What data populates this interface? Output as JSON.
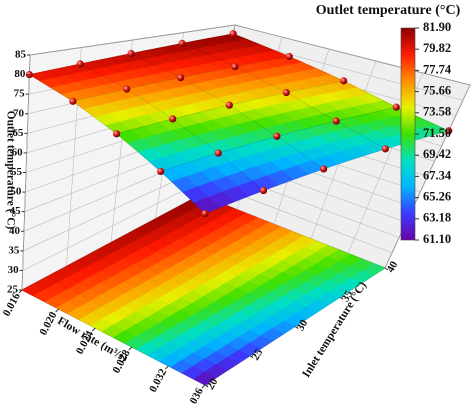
{
  "chart_data": {
    "type": "surface3d",
    "zlabel": "Outlet temperature (°C)",
    "xlabel": "Flow rate (m³/s)",
    "ylabel": "Inlet temperature (°C)",
    "xlim": [
      0.016,
      0.036
    ],
    "xticks": [
      0.016,
      {
        "value": 0.02,
        "label": "0.020"
      },
      0.024,
      0.028,
      0.032,
      0.036
    ],
    "ylim": [
      20,
      40
    ],
    "yticks": [
      20,
      25,
      30,
      35,
      40
    ],
    "zlim": [
      25,
      85
    ],
    "zticks": [
      25,
      30,
      35,
      40,
      45,
      50,
      55,
      60,
      65,
      70,
      75,
      80,
      85
    ],
    "surface": {
      "x": [
        0.016,
        0.021,
        0.026,
        0.031,
        0.036
      ],
      "y": [
        20,
        25,
        30,
        35,
        40
      ],
      "z": [
        [
          80.0,
          80.5,
          81.0,
          81.5,
          81.9
        ],
        [
          76.5,
          77.3,
          78.0,
          78.7,
          79.3
        ],
        [
          72.0,
          73.2,
          74.3,
          75.3,
          76.2
        ],
        [
          66.8,
          68.4,
          69.9,
          71.3,
          72.6
        ],
        [
          61.1,
          63.2,
          65.4,
          67.7,
          70.0
        ]
      ]
    },
    "colorbar": {
      "title": "Outlet temperature (°C)",
      "clim": [
        61.1,
        81.9
      ],
      "ticks": [
        {
          "value": 61.1,
          "label": "61.10"
        },
        63.18,
        65.26,
        67.34,
        69.42,
        {
          "value": 71.5,
          "label": "71.50"
        },
        73.58,
        75.66,
        77.74,
        79.82,
        {
          "value": 81.9,
          "label": "81.90"
        }
      ],
      "colormap": [
        "#6a00a8",
        "#3b3bff",
        "#00b4ff",
        "#00e0c0",
        "#40e000",
        "#e8f000",
        "#ff9000",
        "#ff1a00",
        "#8b0000"
      ]
    },
    "point_color": "#d81c1c",
    "grid": true
  }
}
